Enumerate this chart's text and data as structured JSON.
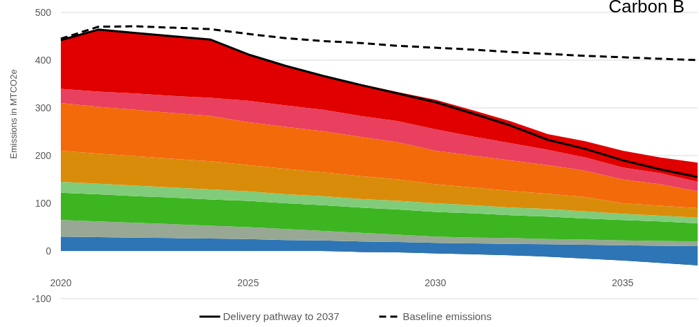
{
  "chart_data": {
    "type": "area",
    "title": "Carbon B",
    "ylabel": "Emissions in MTCO2e",
    "x": [
      2020,
      2021,
      2022,
      2023,
      2024,
      2025,
      2026,
      2027,
      2028,
      2029,
      2030,
      2031,
      2032,
      2033,
      2034,
      2035,
      2036,
      2037
    ],
    "stacked": true,
    "series": [
      {
        "color": "#1f4e79",
        "values": [
          0,
          0,
          0,
          0,
          0,
          0,
          0,
          0,
          -2,
          -3,
          -5,
          -7,
          -9,
          -12,
          -16,
          -20,
          -25,
          -30
        ]
      },
      {
        "color": "#2e75b6",
        "values": [
          30,
          29,
          28,
          27,
          26,
          25,
          23,
          22,
          22,
          22,
          22,
          23,
          24,
          26,
          29,
          32,
          36,
          40
        ]
      },
      {
        "color": "#98a894",
        "values": [
          35,
          33,
          31,
          29,
          27,
          25,
          23,
          20,
          18,
          15,
          13,
          12,
          12,
          11,
          11,
          10,
          10,
          10
        ]
      },
      {
        "color": "#3cb521",
        "values": [
          57,
          57,
          56,
          56,
          55,
          55,
          54,
          54,
          53,
          53,
          52,
          51,
          48,
          47,
          44,
          43,
          41,
          38
        ]
      },
      {
        "color": "#80cc7a",
        "values": [
          23,
          22,
          22,
          21,
          21,
          20,
          19,
          19,
          18,
          18,
          18,
          17,
          16,
          16,
          15,
          13,
          12,
          12
        ]
      },
      {
        "color": "#d98c0a",
        "values": [
          65,
          63,
          62,
          60,
          59,
          55,
          53,
          50,
          48,
          45,
          40,
          37,
          35,
          32,
          30,
          22,
          21,
          20
        ]
      },
      {
        "color": "#f26a0a",
        "values": [
          100,
          98,
          97,
          96,
          95,
          90,
          88,
          86,
          82,
          78,
          70,
          67,
          64,
          60,
          55,
          50,
          45,
          35
        ]
      },
      {
        "color": "#e8405e",
        "values": [
          30,
          32,
          34,
          36,
          38,
          45,
          45,
          45,
          44,
          44,
          45,
          40,
          36,
          32,
          28,
          25,
          23,
          20
        ]
      },
      {
        "color": "#e00000",
        "values": [
          102,
          130,
          127,
          125,
          122,
          97,
          83,
          71,
          67,
          61,
          62,
          55,
          46,
          33,
          34,
          35,
          33,
          40
        ]
      },
      {
        "type": "line",
        "name": "Delivery pathway to 2037",
        "color": "#000000",
        "line_style": "solid",
        "values": [
          442,
          464,
          457,
          450,
          443,
          412,
          388,
          367,
          348,
          330,
          312,
          288,
          263,
          233,
          214,
          190,
          171,
          155
        ]
      },
      {
        "type": "line",
        "name": "Baseline emissions",
        "color": "#000000",
        "line_style": "dashed",
        "values": [
          445,
          470,
          471,
          468,
          465,
          455,
          446,
          440,
          436,
          430,
          426,
          422,
          417,
          413,
          409,
          406,
          403,
          400
        ]
      }
    ],
    "xlim": [
      2020,
      2037
    ],
    "xticks": [
      2020,
      2025,
      2030,
      2035
    ],
    "ylim": [
      -100,
      500
    ],
    "yticks": [
      -100,
      0,
      100,
      200,
      300,
      400,
      500
    ],
    "grid": "y",
    "legend": "bottom"
  }
}
